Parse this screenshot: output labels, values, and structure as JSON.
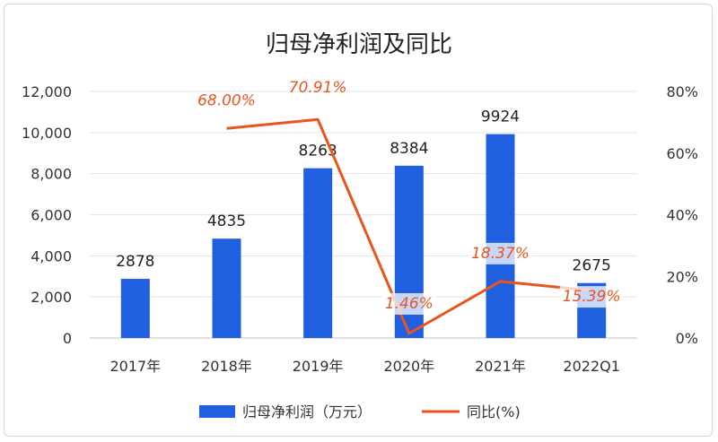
{
  "chart_data": {
    "type": "bar",
    "title": "归母净利润及同比",
    "categories": [
      "2017年",
      "2018年",
      "2019年",
      "2020年",
      "2021年",
      "2022Q1"
    ],
    "series": [
      {
        "name": "归母净利润（万元）",
        "type": "bar",
        "axis": "left",
        "values": [
          2878,
          4835,
          8263,
          8384,
          9924,
          2675
        ],
        "labels": [
          "2878",
          "4835",
          "8263",
          "8384",
          "9924",
          "2675"
        ],
        "color": "#1f5fe0"
      },
      {
        "name": "同比(%)",
        "type": "line",
        "axis": "right",
        "values": [
          null,
          68.0,
          70.91,
          1.46,
          18.37,
          15.39
        ],
        "labels": [
          "",
          "68.00%",
          "70.91%",
          "1.46%",
          "18.37%",
          "15.39%"
        ],
        "color": "#e8561e"
      }
    ],
    "left_axis": {
      "ylim": [
        0,
        12000
      ],
      "ticks": [
        "0",
        "2,000",
        "4,000",
        "6,000",
        "8,000",
        "10,000",
        "12,000"
      ]
    },
    "right_axis": {
      "ylim": [
        0,
        80
      ],
      "ticks": [
        "0%",
        "20%",
        "40%",
        "60%",
        "80%"
      ]
    },
    "grid": true,
    "legend": {
      "position": "bottom",
      "items": [
        "归母净利润（万元）",
        "同比(%)"
      ]
    }
  }
}
